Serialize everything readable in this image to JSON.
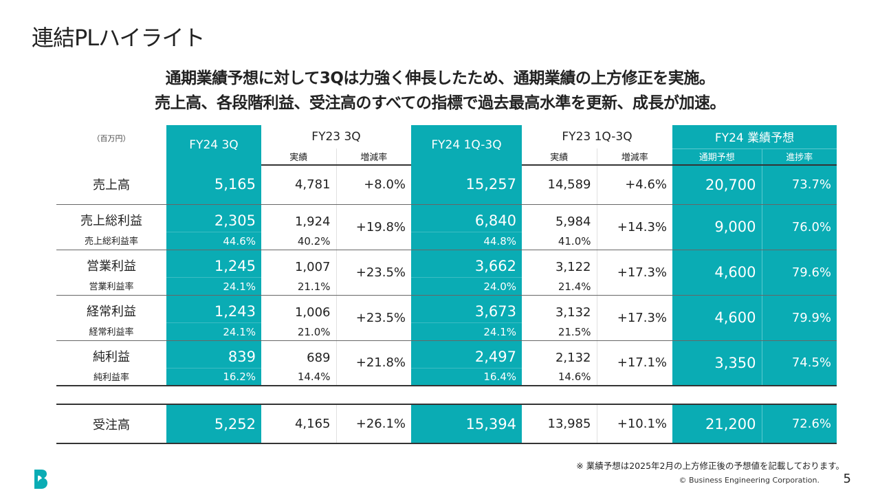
{
  "title": "連結PLハイライト",
  "subtitle": [
    "通期業績予想に対して3Qは力強く伸長したため、通期業績の上方修正を実施。",
    "売上高、各段階利益、受注高のすべての指標で過去最高水準を更新、成長が加速。"
  ],
  "table": {
    "unit": "（百万円）",
    "headers": {
      "fy24_3q": "FY24 3Q",
      "fy23_3q": "FY23 3Q",
      "fy24_1q3q": "FY24 1Q-3Q",
      "fy23_1q3q": "FY23 1Q-3Q",
      "forecast": "FY24 業績予想",
      "actual": "実績",
      "change": "増減率",
      "full_year": "通期予想",
      "progress": "進捗率"
    },
    "sales": {
      "label": "売上高",
      "values": [
        "5,165",
        "4,781",
        "+8.0%",
        "15,257",
        "14,589",
        "+4.6%",
        "20,700",
        "73.7%"
      ]
    },
    "profits": [
      {
        "label": "売上総利益",
        "sub_label": "売上総利益率",
        "fy24_3q": "2,305",
        "fy23_3q": "1,924",
        "chg_3q": "+19.8%",
        "fy24_cum": "6,840",
        "fy23_cum": "5,984",
        "chg_cum": "+14.3%",
        "forecast": "9,000",
        "progress": "76.0%",
        "m": [
          "44.6%",
          "40.2%",
          "44.8%",
          "41.0%"
        ]
      },
      {
        "label": "営業利益",
        "sub_label": "営業利益率",
        "fy24_3q": "1,245",
        "fy23_3q": "1,007",
        "chg_3q": "+23.5%",
        "fy24_cum": "3,662",
        "fy23_cum": "3,122",
        "chg_cum": "+17.3%",
        "forecast": "4,600",
        "progress": "79.6%",
        "m": [
          "24.1%",
          "21.1%",
          "24.0%",
          "21.4%"
        ]
      },
      {
        "label": "経常利益",
        "sub_label": "経常利益率",
        "fy24_3q": "1,243",
        "fy23_3q": "1,006",
        "chg_3q": "+23.5%",
        "fy24_cum": "3,673",
        "fy23_cum": "3,132",
        "chg_cum": "+17.3%",
        "forecast": "4,600",
        "progress": "79.9%",
        "m": [
          "24.1%",
          "21.0%",
          "24.1%",
          "21.5%"
        ]
      },
      {
        "label": "純利益",
        "sub_label": "純利益率",
        "fy24_3q": "839",
        "fy23_3q": "689",
        "chg_3q": "+21.8%",
        "fy24_cum": "2,497",
        "fy23_cum": "2,132",
        "chg_cum": "+17.1%",
        "forecast": "3,350",
        "progress": "74.5%",
        "m": [
          "16.2%",
          "14.4%",
          "16.4%",
          "14.6%"
        ]
      }
    ],
    "orders": {
      "label": "受注高",
      "values": [
        "5,252",
        "4,165",
        "+26.1%",
        "15,394",
        "13,985",
        "+10.1%",
        "21,200",
        "72.6%"
      ]
    }
  },
  "footnote": "※ 業績予想は2025年2月の上方修正後の予想値を記載しております。",
  "copyright": "© Business Engineering Corporation.",
  "page_number": "5",
  "colors": {
    "accent": "#0aacb4"
  }
}
